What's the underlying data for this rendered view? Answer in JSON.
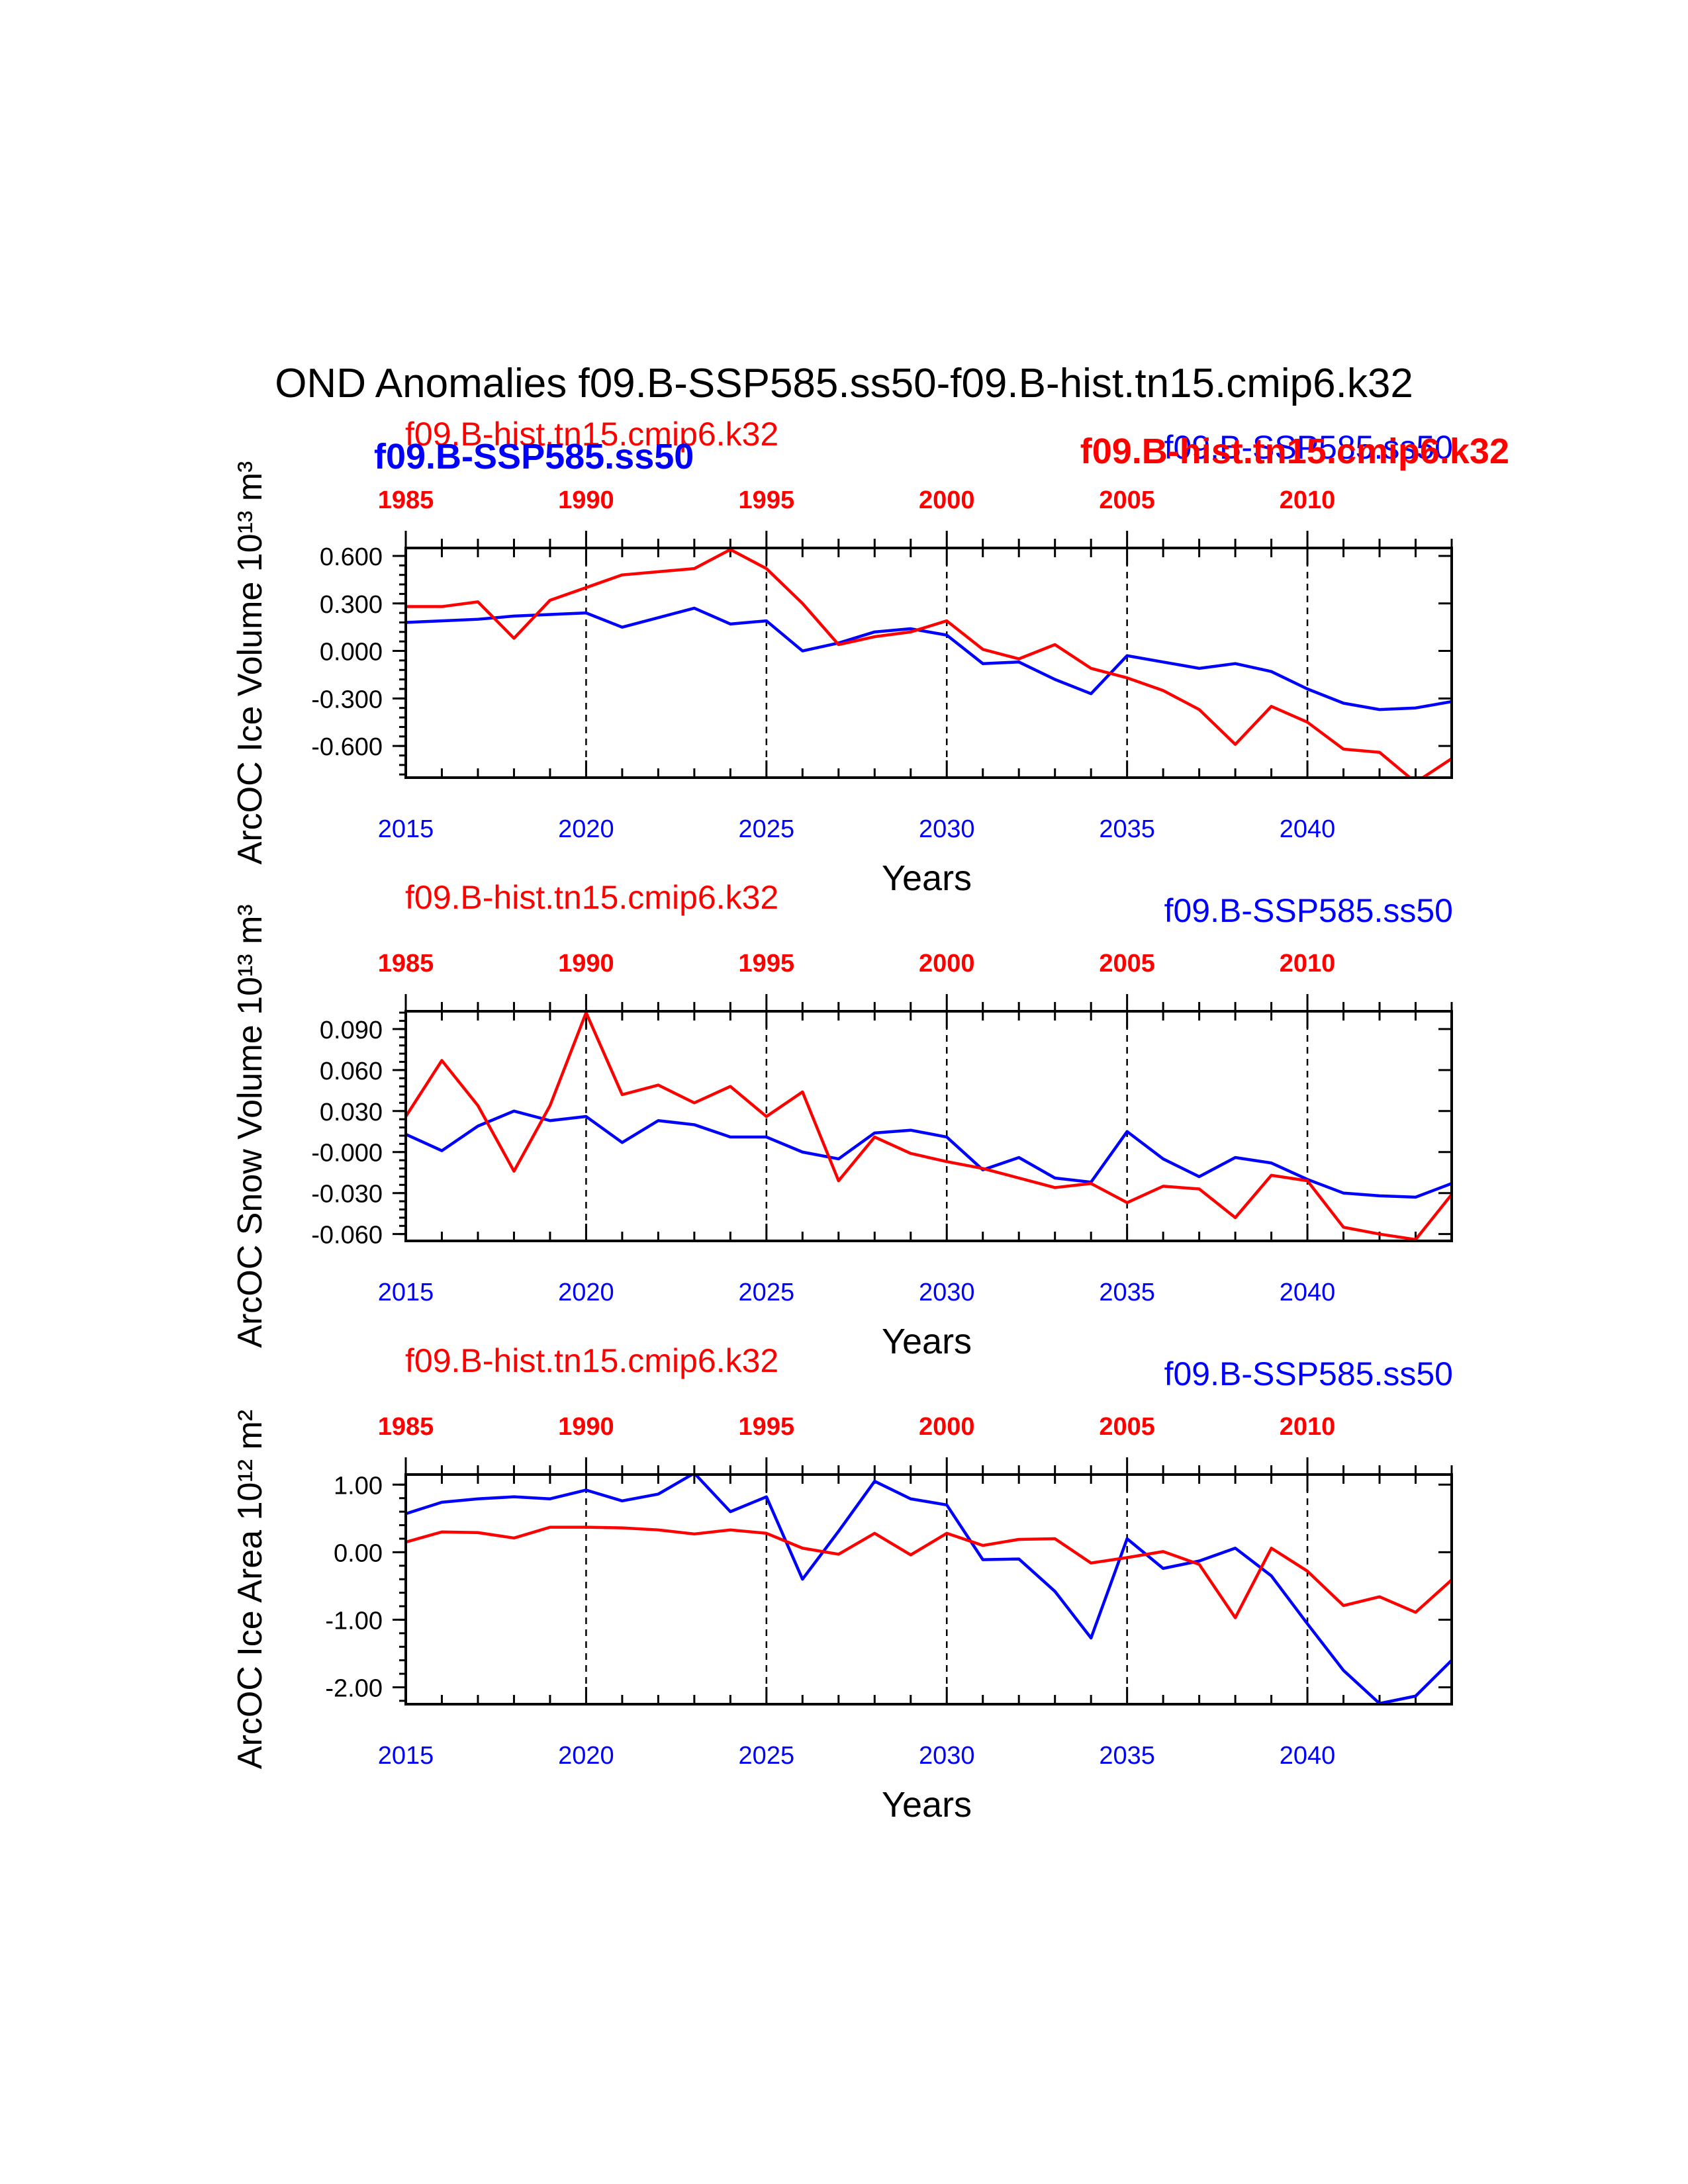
{
  "figure_title": "OND Anomalies f09.B-SSP585.ss50-f09.B-hist.tn15.cmip6.k32",
  "colors": {
    "ssp585": "#0000ff",
    "hist": "#ff0000",
    "axis": "#000000"
  },
  "chart_data": [
    {
      "type": "line",
      "ylabel": "ArcOC Ice Volume 10¹³ m³",
      "xlabel": "Years",
      "series_label_top_left": "f09.B-hist.tn15.cmip6.k32",
      "series_label_top_right": "f09.B-SSP585.ss50",
      "overlap_labels": [
        "f09.B-SSP585.ss50",
        "f09.B-hist.tn15.cmip6.k32"
      ],
      "x_bottom_ticks": [
        "2015",
        "2020",
        "2025",
        "2030",
        "2035",
        "2040"
      ],
      "x_top_ticks": [
        "1985",
        "1990",
        "1995",
        "2000",
        "2005",
        "2010"
      ],
      "x_range": [
        2015,
        2044
      ],
      "ylim": [
        -0.8,
        0.65
      ],
      "y_ticks": [
        0.6,
        0.3,
        0.0,
        -0.3,
        -0.6
      ],
      "y_tick_labels": [
        "0.600",
        "0.300",
        "0.000",
        "-0.300",
        "-0.600"
      ],
      "x": [
        2015,
        2016,
        2017,
        2018,
        2019,
        2020,
        2021,
        2022,
        2023,
        2024,
        2025,
        2026,
        2027,
        2028,
        2029,
        2030,
        2031,
        2032,
        2033,
        2034,
        2035,
        2036,
        2037,
        2038,
        2039,
        2040,
        2041,
        2042,
        2043,
        2044
      ],
      "series": [
        {
          "name": "f09.B-SSP585.ss50",
          "color": "#0000ff",
          "values": [
            0.18,
            0.19,
            0.2,
            0.22,
            0.23,
            0.24,
            0.15,
            0.21,
            0.27,
            0.17,
            0.19,
            0.0,
            0.05,
            0.12,
            0.14,
            0.1,
            -0.08,
            -0.07,
            -0.18,
            -0.27,
            -0.03,
            -0.07,
            -0.11,
            -0.08,
            -0.13,
            -0.24,
            -0.33,
            -0.37,
            -0.36,
            -0.32
          ]
        },
        {
          "name": "f09.B-hist.tn15.cmip6.k32",
          "color": "#ff0000",
          "values": [
            0.28,
            0.28,
            0.31,
            0.08,
            0.32,
            0.4,
            0.48,
            0.5,
            0.52,
            0.64,
            0.52,
            0.3,
            0.04,
            0.09,
            0.12,
            0.19,
            0.01,
            -0.05,
            0.04,
            -0.11,
            -0.17,
            -0.25,
            -0.37,
            -0.59,
            -0.35,
            -0.45,
            -0.62,
            -0.64,
            -0.83,
            -0.68
          ]
        }
      ]
    },
    {
      "type": "line",
      "ylabel": "ArcOC Snow Volume 10¹³ m³",
      "xlabel": "Years",
      "series_label_top_left": "f09.B-hist.tn15.cmip6.k32",
      "series_label_top_right": "f09.B-SSP585.ss50",
      "x_bottom_ticks": [
        "2015",
        "2020",
        "2025",
        "2030",
        "2035",
        "2040"
      ],
      "x_top_ticks": [
        "1985",
        "1990",
        "1995",
        "2000",
        "2005",
        "2010"
      ],
      "x_range": [
        2015,
        2044
      ],
      "ylim": [
        -0.065,
        0.103
      ],
      "y_ticks": [
        0.09,
        0.06,
        0.03,
        0.0,
        -0.03,
        -0.06
      ],
      "y_tick_labels": [
        "0.090",
        "0.060",
        "0.030",
        "-0.000",
        "-0.030",
        "-0.060"
      ],
      "x": [
        2015,
        2016,
        2017,
        2018,
        2019,
        2020,
        2021,
        2022,
        2023,
        2024,
        2025,
        2026,
        2027,
        2028,
        2029,
        2030,
        2031,
        2032,
        2033,
        2034,
        2035,
        2036,
        2037,
        2038,
        2039,
        2040,
        2041,
        2042,
        2043,
        2044
      ],
      "series": [
        {
          "name": "f09.B-SSP585.ss50",
          "color": "#0000ff",
          "values": [
            0.013,
            0.001,
            0.019,
            0.03,
            0.023,
            0.026,
            0.007,
            0.023,
            0.02,
            0.011,
            0.011,
            0.0,
            -0.005,
            0.014,
            0.016,
            0.011,
            -0.013,
            -0.004,
            -0.019,
            -0.022,
            0.015,
            -0.005,
            -0.018,
            -0.004,
            -0.008,
            -0.02,
            -0.03,
            -0.032,
            -0.033,
            -0.023
          ]
        },
        {
          "name": "f09.B-hist.tn15.cmip6.k32",
          "color": "#ff0000",
          "values": [
            0.026,
            0.067,
            0.034,
            -0.014,
            0.034,
            0.102,
            0.042,
            0.049,
            0.036,
            0.048,
            0.026,
            0.044,
            -0.021,
            0.011,
            -0.001,
            -0.007,
            -0.012,
            -0.019,
            -0.026,
            -0.023,
            -0.037,
            -0.025,
            -0.027,
            -0.048,
            -0.017,
            -0.021,
            -0.055,
            -0.06,
            -0.064,
            -0.031
          ]
        }
      ]
    },
    {
      "type": "line",
      "ylabel": "ArcOC Ice Area 10¹² m²",
      "xlabel": "Years",
      "series_label_top_left": "f09.B-hist.tn15.cmip6.k32",
      "series_label_top_right": "f09.B-SSP585.ss50",
      "x_bottom_ticks": [
        "2015",
        "2020",
        "2025",
        "2030",
        "2035",
        "2040"
      ],
      "x_top_ticks": [
        "1985",
        "1990",
        "1995",
        "2000",
        "2005",
        "2010"
      ],
      "x_range": [
        2015,
        2044
      ],
      "ylim": [
        -2.25,
        1.15
      ],
      "y_ticks": [
        1.0,
        0.0,
        -1.0,
        -2.0
      ],
      "y_tick_labels": [
        "1.00",
        "0.00",
        "-1.00",
        "-2.00"
      ],
      "x": [
        2015,
        2016,
        2017,
        2018,
        2019,
        2020,
        2021,
        2022,
        2023,
        2024,
        2025,
        2026,
        2027,
        2028,
        2029,
        2030,
        2031,
        2032,
        2033,
        2034,
        2035,
        2036,
        2037,
        2038,
        2039,
        2040,
        2041,
        2042,
        2043,
        2044
      ],
      "series": [
        {
          "name": "f09.B-SSP585.ss50",
          "color": "#0000ff",
          "values": [
            0.57,
            0.74,
            0.79,
            0.82,
            0.79,
            0.92,
            0.76,
            0.86,
            1.17,
            0.6,
            0.82,
            -0.4,
            0.31,
            1.05,
            0.79,
            0.7,
            -0.11,
            -0.1,
            -0.58,
            -1.27,
            0.2,
            -0.24,
            -0.13,
            0.06,
            -0.35,
            -1.06,
            -1.75,
            -2.24,
            -2.13,
            -1.6
          ]
        },
        {
          "name": "f09.B-hist.tn15.cmip6.k32",
          "color": "#ff0000",
          "values": [
            0.15,
            0.3,
            0.29,
            0.21,
            0.37,
            0.37,
            0.36,
            0.33,
            0.27,
            0.33,
            0.28,
            0.06,
            -0.03,
            0.28,
            -0.04,
            0.28,
            0.1,
            0.19,
            0.2,
            -0.16,
            -0.08,
            0.01,
            -0.18,
            -0.97,
            0.06,
            -0.28,
            -0.79,
            -0.66,
            -0.89,
            -0.41
          ]
        }
      ]
    }
  ]
}
